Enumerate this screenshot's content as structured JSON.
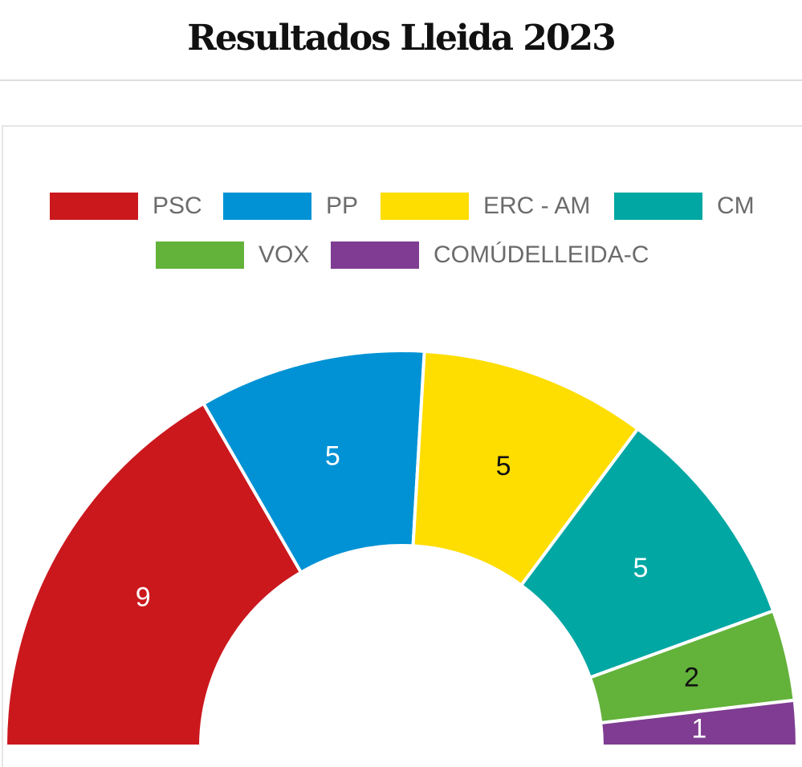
{
  "page": {
    "title": "Resultados Lleida 2023"
  },
  "chart_data": {
    "type": "pie",
    "subtype": "parliament-semicircle",
    "title": "",
    "legend_placement": "top",
    "total": 27,
    "series": [
      {
        "name": "PSC",
        "value": 9,
        "color": "#cb181d",
        "label_color": "#ffffff"
      },
      {
        "name": "PP",
        "value": 5,
        "color": "#0092d4",
        "label_color": "#ffffff"
      },
      {
        "name": "ERC - AM",
        "value": 5,
        "color": "#fedd00",
        "label_color": "#111111"
      },
      {
        "name": "CM",
        "value": 5,
        "color": "#00a7a3",
        "label_color": "#ffffff"
      },
      {
        "name": "VOX",
        "value": 2,
        "color": "#63b23a",
        "label_color": "#111111"
      },
      {
        "name": "COMÚDELLEIDA-C",
        "value": 1,
        "color": "#7f3c92",
        "label_color": "#ffffff"
      }
    ]
  }
}
